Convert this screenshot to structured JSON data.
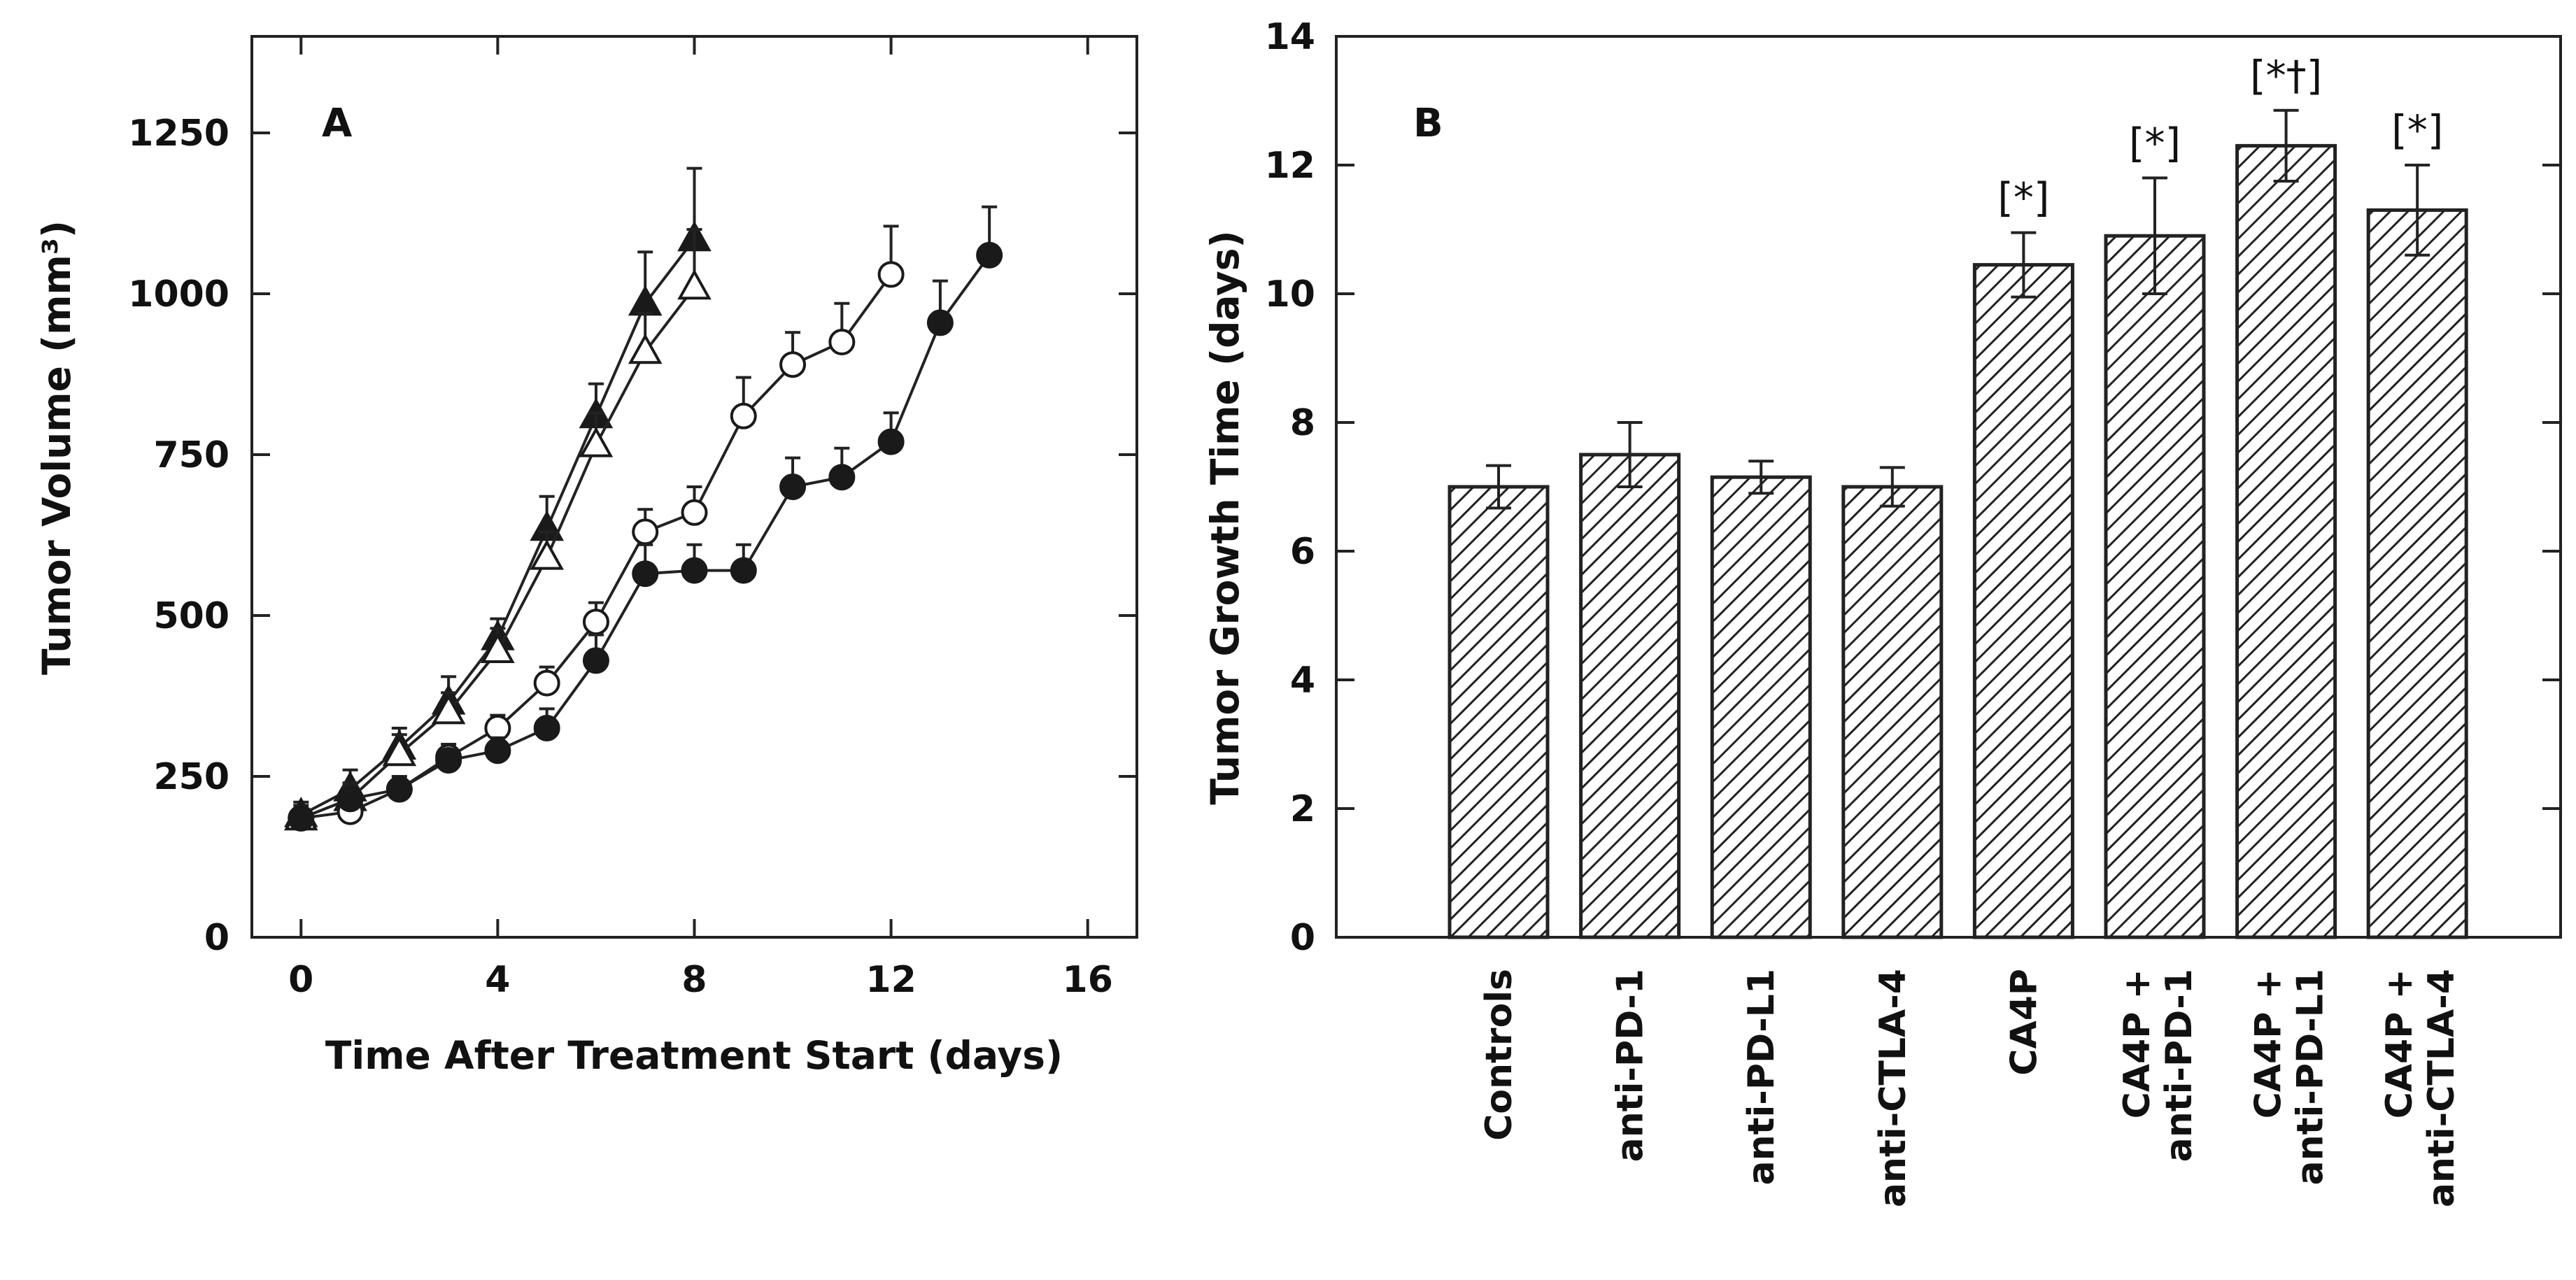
{
  "chart_data": [
    {
      "panel": "A",
      "type": "line",
      "title": "",
      "xlabel": "Time After Treatment Start (days)",
      "ylabel": "Tumor Volume (mm³)",
      "xlim": [
        -1,
        17
      ],
      "ylim": [
        0,
        1400
      ],
      "xticks": [
        0,
        4,
        8,
        12,
        16
      ],
      "yticks": [
        0,
        250,
        500,
        750,
        1000,
        1250
      ],
      "grid": false,
      "series": [
        {
          "name": "filled-triangle",
          "marker": "triangle",
          "fill": "filled",
          "x": [
            0,
            1,
            2,
            3,
            4,
            5,
            6,
            7,
            8
          ],
          "values": [
            190,
            230,
            295,
            365,
            465,
            635,
            810,
            985,
            1085
          ],
          "errors": [
            20,
            30,
            30,
            40,
            30,
            50,
            50,
            80,
            110
          ]
        },
        {
          "name": "open-triangle",
          "marker": "triangle",
          "fill": "open",
          "x": [
            0,
            1,
            2,
            3,
            4,
            5,
            6,
            7,
            8
          ],
          "values": [
            185,
            215,
            285,
            350,
            445,
            590,
            765,
            910,
            1010
          ],
          "errors": [
            20,
            25,
            30,
            30,
            35,
            40,
            50,
            60,
            90
          ]
        },
        {
          "name": "open-circle",
          "marker": "circle",
          "fill": "open",
          "x": [
            0,
            1,
            2,
            3,
            4,
            5,
            6,
            7,
            8,
            9,
            10,
            11,
            12
          ],
          "values": [
            185,
            195,
            230,
            280,
            325,
            395,
            490,
            630,
            660,
            810,
            890,
            925,
            1030
          ],
          "errors": [
            15,
            20,
            20,
            20,
            20,
            25,
            30,
            35,
            40,
            60,
            50,
            60,
            75
          ]
        },
        {
          "name": "filled-circle",
          "marker": "circle",
          "fill": "filled",
          "x": [
            0,
            1,
            2,
            3,
            4,
            5,
            6,
            7,
            8,
            9,
            10,
            11,
            12,
            13,
            14
          ],
          "values": [
            185,
            215,
            230,
            275,
            290,
            325,
            430,
            565,
            570,
            570,
            700,
            715,
            770,
            955,
            1060
          ],
          "errors": [
            15,
            20,
            15,
            15,
            20,
            30,
            40,
            45,
            40,
            40,
            45,
            45,
            45,
            65,
            75
          ]
        }
      ]
    },
    {
      "panel": "B",
      "type": "bar",
      "title": "",
      "xlabel": "",
      "ylabel": "Tumor Growth Time (days)",
      "ylim": [
        0,
        14
      ],
      "yticks": [
        0,
        2,
        4,
        6,
        8,
        10,
        12,
        14
      ],
      "grid": false,
      "fill": "diagonal-hatch",
      "categories": [
        [
          "Controls"
        ],
        [
          "anti-PD-1"
        ],
        [
          "anti-PD-L1"
        ],
        [
          "anti-CTLA-4"
        ],
        [
          "CA4P"
        ],
        [
          "CA4P +",
          "anti-PD-1"
        ],
        [
          "CA4P +",
          "anti-PD-L1"
        ],
        [
          "CA4P +",
          "anti-CTLA-4"
        ]
      ],
      "values": [
        7.0,
        7.5,
        7.15,
        7.0,
        10.45,
        10.9,
        12.3,
        11.3
      ],
      "errors": [
        0.33,
        0.5,
        0.25,
        0.3,
        0.5,
        0.9,
        0.55,
        0.7
      ],
      "annotations": [
        "",
        "",
        "",
        "",
        "[*]",
        "[*]",
        "[*†]",
        "[*]"
      ]
    }
  ]
}
